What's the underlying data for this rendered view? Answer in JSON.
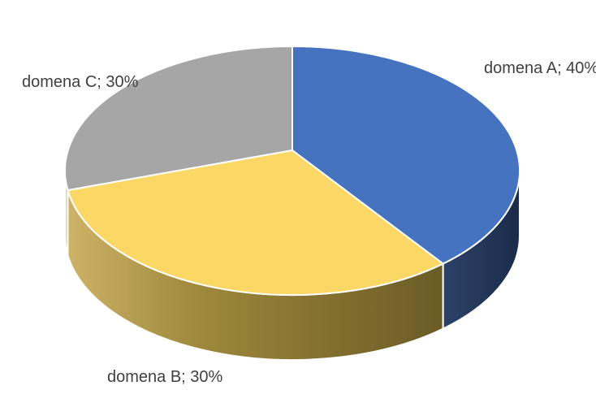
{
  "page": {
    "background": "#FFFFFF"
  },
  "chart_data": {
    "type": "pie",
    "three_d": true,
    "title": "",
    "legend": "none",
    "direction": "clockwise",
    "start_angle_deg": -90,
    "categories": [
      "domena A",
      "domena B",
      "domena C"
    ],
    "values": [
      40,
      30,
      30
    ],
    "unit": "%",
    "labels": [
      "domena A; 40%",
      "domena B; 30%",
      "domena C; 30%"
    ],
    "colors": [
      "#4573C0",
      "#FBD765",
      "#A6A6A6"
    ],
    "side_gradients": [
      [
        "#2C4269",
        "#1B2B49"
      ],
      [
        "#CDB368",
        "#A18A3D",
        "#857130",
        "#6B5C26"
      ],
      [
        "#F2E8C9",
        "#D3BC74"
      ]
    ],
    "divider_color": "#FFFFFF",
    "label_color": "#3F3F3F"
  }
}
